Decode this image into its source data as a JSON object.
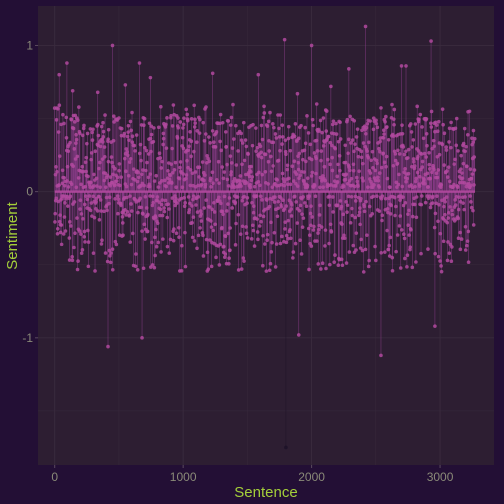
{
  "chart_data": {
    "type": "lollipop",
    "title": "",
    "xlabel": "Sentence",
    "ylabel": "Sentiment",
    "x_range": [
      -130,
      3420
    ],
    "y_range": [
      -1.87,
      1.27
    ],
    "x_ticks": [
      0,
      1000,
      2000,
      3000
    ],
    "x_tick_labels": [
      "0",
      "1000",
      "2000",
      "3000"
    ],
    "y_ticks": [
      -1,
      0,
      1
    ],
    "y_tick_labels": [
      "-1",
      "0",
      "1"
    ],
    "grid": true,
    "legend": "none",
    "sentence_count": 3272,
    "highlights": [
      {
        "x": 35,
        "y": 0.8
      },
      {
        "x": 95,
        "y": 0.88
      },
      {
        "x": 140,
        "y": 0.69
      },
      {
        "x": 335,
        "y": 0.68
      },
      {
        "x": 450,
        "y": 1.0
      },
      {
        "x": 550,
        "y": 0.73
      },
      {
        "x": 660,
        "y": 0.88
      },
      {
        "x": 745,
        "y": 0.78
      },
      {
        "x": 1230,
        "y": 0.81
      },
      {
        "x": 1585,
        "y": 0.8
      },
      {
        "x": 1790,
        "y": 1.04
      },
      {
        "x": 1890,
        "y": 0.67
      },
      {
        "x": 2000,
        "y": 1.0
      },
      {
        "x": 2150,
        "y": 0.72
      },
      {
        "x": 2290,
        "y": 0.84
      },
      {
        "x": 2420,
        "y": 1.13
      },
      {
        "x": 2700,
        "y": 0.86
      },
      {
        "x": 2735,
        "y": 0.86
      },
      {
        "x": 2930,
        "y": 1.03
      },
      {
        "x": 3230,
        "y": 0.55
      },
      {
        "x": 415,
        "y": -1.06
      },
      {
        "x": 680,
        "y": -1.0
      },
      {
        "x": 1900,
        "y": -0.98
      },
      {
        "x": 2540,
        "y": -1.12
      },
      {
        "x": 2960,
        "y": -0.92
      },
      {
        "x": 1800,
        "y": -1.75
      }
    ],
    "colors": {
      "background": "#230f35",
      "panel": "#2d1e32",
      "grid": "#3a2b3e",
      "stem": "#8e3d8c",
      "point": "#b2499f",
      "axis_title": "#a4cf3a",
      "tick_label": "#8a8a78",
      "outlier": "#1c1228"
    }
  }
}
